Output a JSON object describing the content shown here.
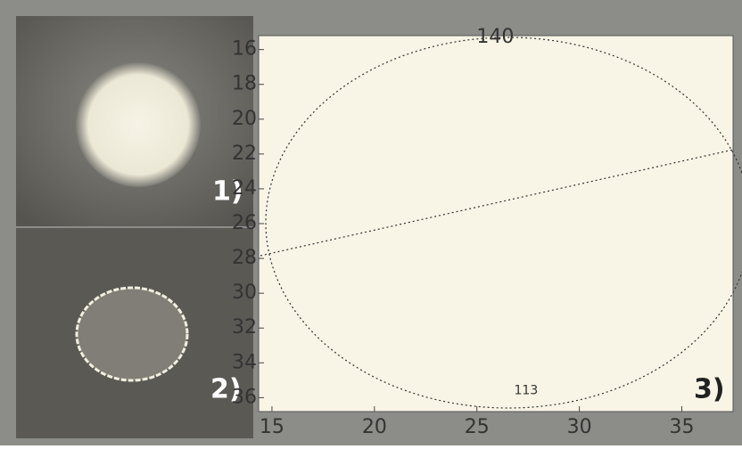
{
  "panel_labels": [
    "1)",
    "2)",
    "3)"
  ],
  "chart_data": {
    "type": "contour",
    "xlim": [
      14.35,
      37.5
    ],
    "ylim": [
      15.2,
      36.8
    ],
    "xticks": [
      15,
      20,
      25,
      30,
      35
    ],
    "yticks": [
      16,
      18,
      20,
      22,
      24,
      26,
      28,
      30,
      32,
      34,
      36
    ],
    "y_inverted": true,
    "annotations": [
      {
        "text": "140",
        "x": 25.9,
        "y": 15.3
      },
      {
        "text": "113",
        "x": 27.4,
        "y": 35.6
      }
    ]
  }
}
